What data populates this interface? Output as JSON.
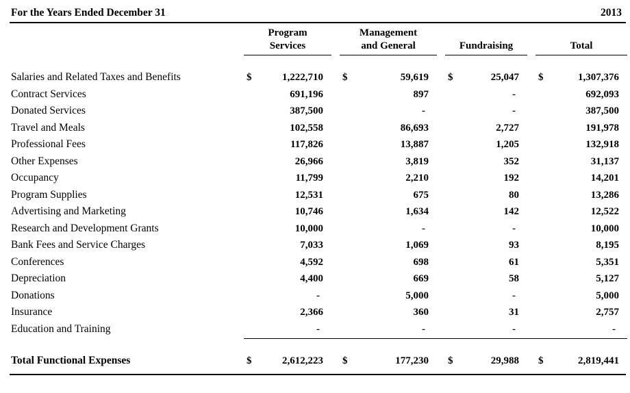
{
  "colors": {
    "background": "#ffffff",
    "text": "#000000",
    "rule": "#000000"
  },
  "header": {
    "title": "For the Years Ended December 31",
    "year": "2013"
  },
  "columns": [
    {
      "line1": "Program",
      "line2": "Services"
    },
    {
      "line1": "Management",
      "line2": "and General"
    },
    {
      "line1": "",
      "line2": "Fundraising"
    },
    {
      "line1": "",
      "line2": "Total"
    }
  ],
  "rows": [
    {
      "label": "Salaries and Related Taxes and Benefits",
      "dollar_sign": "$",
      "values": [
        "1,222,710",
        "59,619",
        "25,047",
        "1,307,376"
      ]
    },
    {
      "label": "Contract Services",
      "dollar_sign": "",
      "values": [
        "691,196",
        "897",
        "-",
        "692,093"
      ]
    },
    {
      "label": "Donated Services",
      "dollar_sign": "",
      "values": [
        "387,500",
        "-",
        "-",
        "387,500"
      ]
    },
    {
      "label": "Travel and Meals",
      "dollar_sign": "",
      "values": [
        "102,558",
        "86,693",
        "2,727",
        "191,978"
      ]
    },
    {
      "label": "Professional Fees",
      "dollar_sign": "",
      "values": [
        "117,826",
        "13,887",
        "1,205",
        "132,918"
      ]
    },
    {
      "label": "Other Expenses",
      "dollar_sign": "",
      "values": [
        "26,966",
        "3,819",
        "352",
        "31,137"
      ]
    },
    {
      "label": "Occupancy",
      "dollar_sign": "",
      "values": [
        "11,799",
        "2,210",
        "192",
        "14,201"
      ]
    },
    {
      "label": "Program Supplies",
      "dollar_sign": "",
      "values": [
        "12,531",
        "675",
        "80",
        "13,286"
      ]
    },
    {
      "label": "Advertising and Marketing",
      "dollar_sign": "",
      "values": [
        "10,746",
        "1,634",
        "142",
        "12,522"
      ]
    },
    {
      "label": "Research and Development Grants",
      "dollar_sign": "",
      "values": [
        "10,000",
        "-",
        "-",
        "10,000"
      ]
    },
    {
      "label": "Bank Fees and Service Charges",
      "dollar_sign": "",
      "values": [
        "7,033",
        "1,069",
        "93",
        "8,195"
      ]
    },
    {
      "label": "Conferences",
      "dollar_sign": "",
      "values": [
        "4,592",
        "698",
        "61",
        "5,351"
      ]
    },
    {
      "label": "Depreciation",
      "dollar_sign": "",
      "values": [
        "4,400",
        "669",
        "58",
        "5,127"
      ]
    },
    {
      "label": "Donations",
      "dollar_sign": "",
      "values": [
        "-",
        "5,000",
        "-",
        "5,000"
      ]
    },
    {
      "label": "Insurance",
      "dollar_sign": "",
      "values": [
        "2,366",
        "360",
        "31",
        "2,757"
      ]
    },
    {
      "label": "Education and Training",
      "dollar_sign": "",
      "values": [
        "-",
        "-",
        "-",
        "-"
      ]
    }
  ],
  "total_row": {
    "label": "Total Functional Expenses",
    "dollar_sign": "$",
    "values": [
      "2,612,223",
      "177,230",
      "29,988",
      "2,819,441"
    ]
  }
}
